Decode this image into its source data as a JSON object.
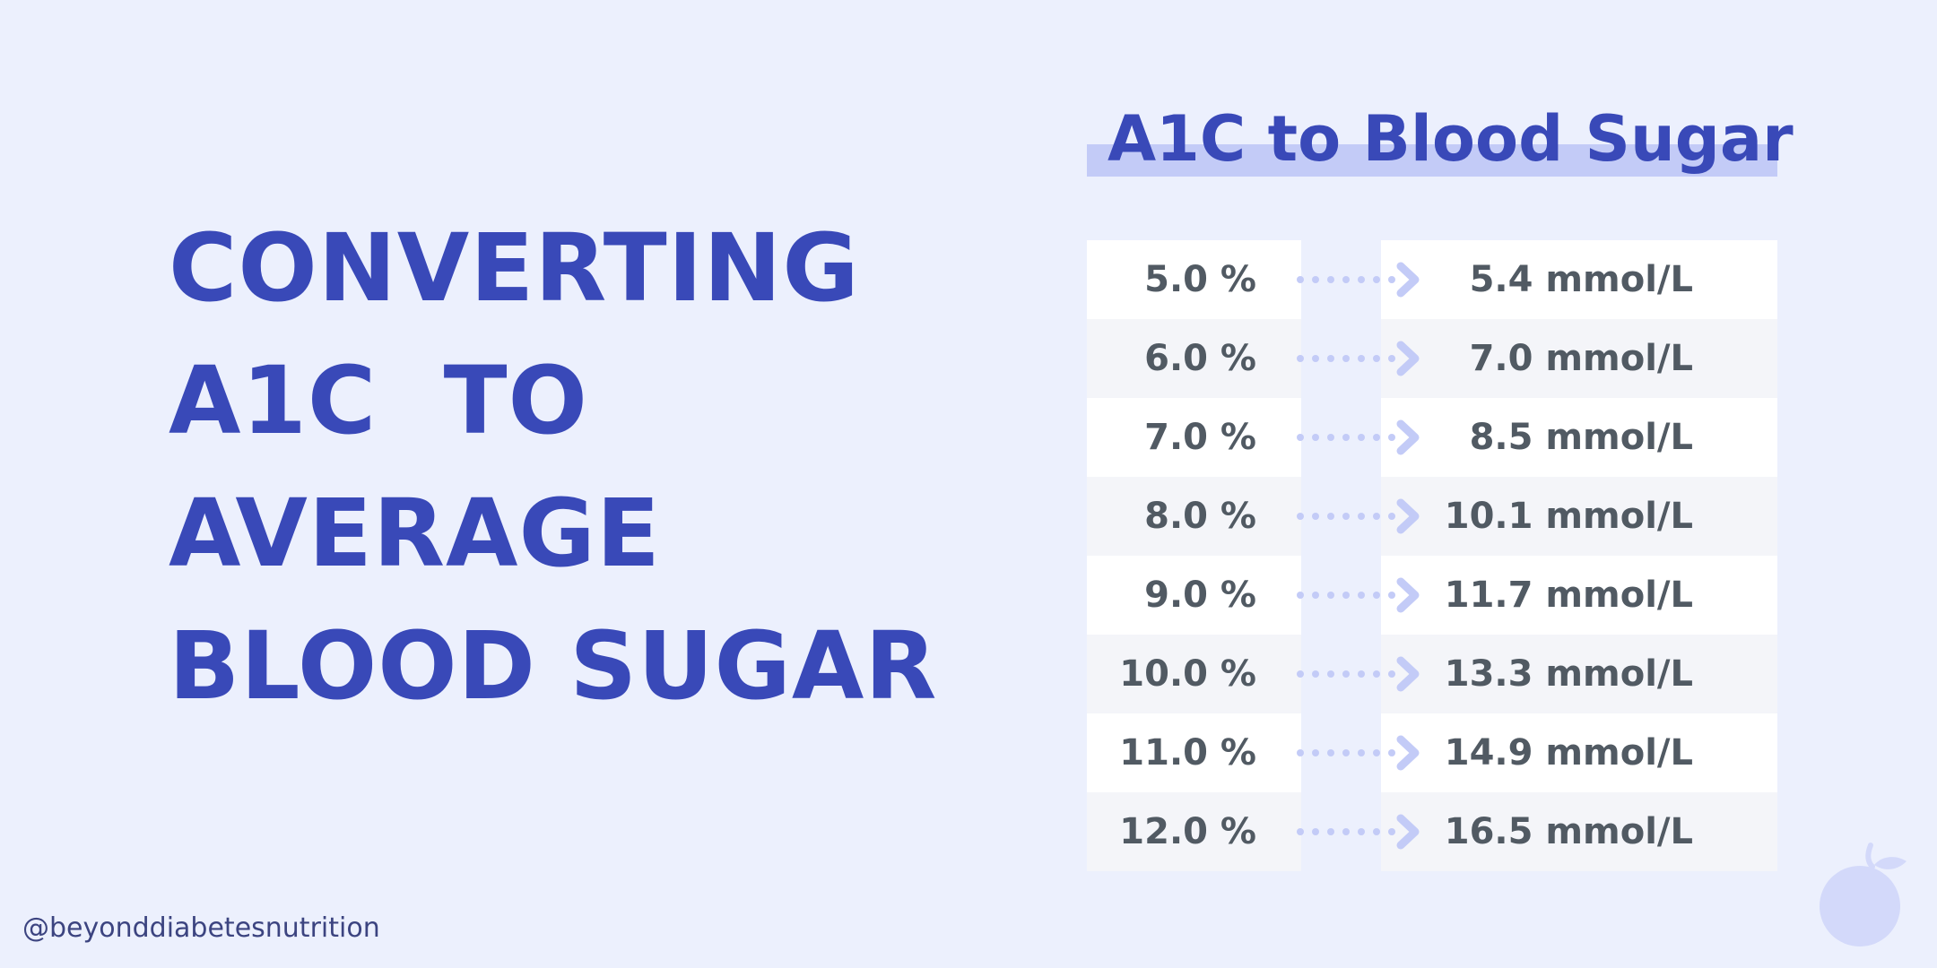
{
  "headline": {
    "lines": [
      "CONVERTING",
      "A1C  TO",
      "AVERAGE",
      "BLOOD SUGAR"
    ]
  },
  "table": {
    "title": "A1C to Blood Sugar",
    "rows": [
      {
        "a1c": "5.0 %",
        "mmol": "5.4 mmol/L"
      },
      {
        "a1c": "6.0 %",
        "mmol": "7.0 mmol/L"
      },
      {
        "a1c": "7.0 %",
        "mmol": "8.5 mmol/L"
      },
      {
        "a1c": "8.0 %",
        "mmol": "10.1 mmol/L"
      },
      {
        "a1c": "9.0 %",
        "mmol": "11.7 mmol/L"
      },
      {
        "a1c": "10.0 %",
        "mmol": "13.3 mmol/L"
      },
      {
        "a1c": "11.0 %",
        "mmol": "14.9 mmol/L"
      },
      {
        "a1c": "12.0 %",
        "mmol": "16.5 mmol/L"
      }
    ]
  },
  "footer": {
    "handle": "@beyonddiabetesnutrition"
  },
  "icons": {
    "connector": "dotted-arrow-right-icon",
    "logo": "fruit-logo-icon"
  },
  "colors": {
    "background": "#ecf0fd",
    "accent": "#3949b8",
    "highlight": "#c3cbf7",
    "value_text": "#515a63",
    "arrow": "#c3cbf7"
  }
}
